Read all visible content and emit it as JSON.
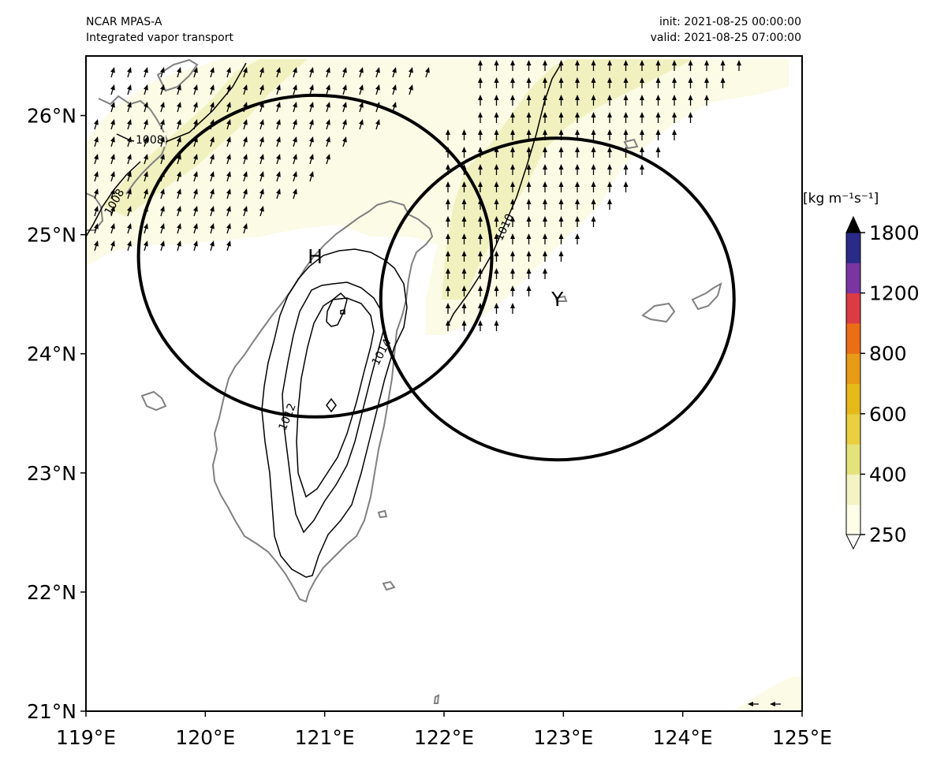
{
  "header": {
    "model": "NCAR MPAS-A",
    "field": "Integrated vapor transport",
    "init": "init: 2021-08-25 00:00:00",
    "valid": "valid: 2021-08-25 07:00:00"
  },
  "map": {
    "lon_range": [
      119,
      125
    ],
    "lat_range": [
      21,
      26.5
    ],
    "lon_ticks": [
      119,
      120,
      121,
      122,
      123,
      124,
      125
    ],
    "lon_tick_labels": [
      "119°E",
      "120°E",
      "121°E",
      "122°E",
      "123°E",
      "124°E",
      "125°E"
    ],
    "lat_ticks": [
      21,
      22,
      23,
      24,
      25,
      26
    ],
    "lat_tick_labels": [
      "21°N",
      "22°N",
      "23°N",
      "24°N",
      "25°N",
      "26°N"
    ],
    "circles": [
      {
        "label": "H",
        "center": [
          120.92,
          24.82
        ],
        "radius_deg_lon": 1.48,
        "radius_deg_lat": 1.35
      },
      {
        "label": "Y",
        "center": [
          122.95,
          24.46
        ],
        "radius_deg_lon": 1.48,
        "radius_deg_lat": 1.35
      }
    ],
    "pressure_contour_labels": [
      "1008",
      "1008",
      "1010",
      "1012",
      "1014"
    ],
    "colorbar": {
      "unit": "[kg m⁻¹s⁻¹]",
      "tick_labels": [
        "250",
        "400",
        "600",
        "800",
        "1200",
        "1800"
      ],
      "colors": [
        "#fdfde8",
        "#f3f3c3",
        "#e4e27a",
        "#e9cf40",
        "#e6b91a",
        "#e79a16",
        "#ea6e15",
        "#db3c43",
        "#7b35a3",
        "#2a2b87"
      ],
      "extend_color_high": "#000000",
      "extend_color_low": "#ffffff"
    }
  }
}
